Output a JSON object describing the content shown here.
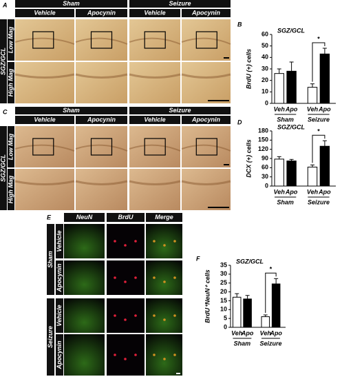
{
  "panels": {
    "A": {
      "letter": "A",
      "groups": [
        "Sham",
        "Seizure"
      ],
      "conditions": [
        "Vehicle",
        "Apocynin",
        "Vehicle",
        "Apocynin"
      ],
      "region": "SGZ/GCL",
      "rows": [
        "Low Mag",
        "High Mag"
      ]
    },
    "C": {
      "letter": "C",
      "groups": [
        "Sham",
        "Seizure"
      ],
      "conditions": [
        "Vehicle",
        "Apocynin",
        "Vehicle",
        "Apocynin"
      ],
      "region": "SGZ/GCL",
      "rows": [
        "Low Mag",
        "High Mag"
      ]
    },
    "E": {
      "letter": "E",
      "columns": [
        "NeuN",
        "BrdU",
        "Merge"
      ],
      "groups": [
        "Sham",
        "Seizure"
      ],
      "conditions": [
        "Vehicle",
        "Apocynin",
        "Vehicle",
        "Apocynin"
      ]
    }
  },
  "chart_data": [
    {
      "type": "bar",
      "panel": "B",
      "title": "SGZ/GCL",
      "ylabel": "BrdU (+) cells",
      "categories": [
        "Veh",
        "Apo",
        "Veh",
        "Apo"
      ],
      "groups": [
        "Sham",
        "Seizure"
      ],
      "values": [
        26,
        28,
        14,
        43
      ],
      "errors": [
        4,
        8,
        3,
        5
      ],
      "colors": [
        "#ffffff",
        "#000000",
        "#ffffff",
        "#000000"
      ],
      "ylim": [
        0,
        60
      ],
      "yticks": [
        0,
        10,
        20,
        30,
        40,
        50,
        60
      ],
      "annotation": "*"
    },
    {
      "type": "bar",
      "panel": "D",
      "title": "SGZ/GCL",
      "ylabel": "DCX (+) cells",
      "categories": [
        "Veh",
        "Apo",
        "Veh",
        "Apo"
      ],
      "groups": [
        "Sham",
        "Seizure"
      ],
      "values": [
        88,
        82,
        62,
        130
      ],
      "errors": [
        8,
        5,
        7,
        18
      ],
      "colors": [
        "#ffffff",
        "#000000",
        "#ffffff",
        "#000000"
      ],
      "ylim": [
        0,
        180
      ],
      "yticks": [
        0,
        30,
        60,
        90,
        120,
        150,
        180
      ],
      "annotation": "*"
    },
    {
      "type": "bar",
      "panel": "F",
      "title": "SGZ/GCL",
      "ylabel": "BrdU⁺NeuN⁺ cells",
      "categories": [
        "Veh",
        "Apo",
        "Veh",
        "Apo"
      ],
      "groups": [
        "Sham",
        "Seizure"
      ],
      "values": [
        17,
        16,
        6,
        24.5
      ],
      "errors": [
        2,
        2,
        1,
        3
      ],
      "colors": [
        "#ffffff",
        "#000000",
        "#ffffff",
        "#000000"
      ],
      "ylim": [
        0,
        35
      ],
      "yticks": [
        0,
        5,
        10,
        15,
        20,
        25,
        30,
        35
      ],
      "annotation": "*"
    }
  ]
}
